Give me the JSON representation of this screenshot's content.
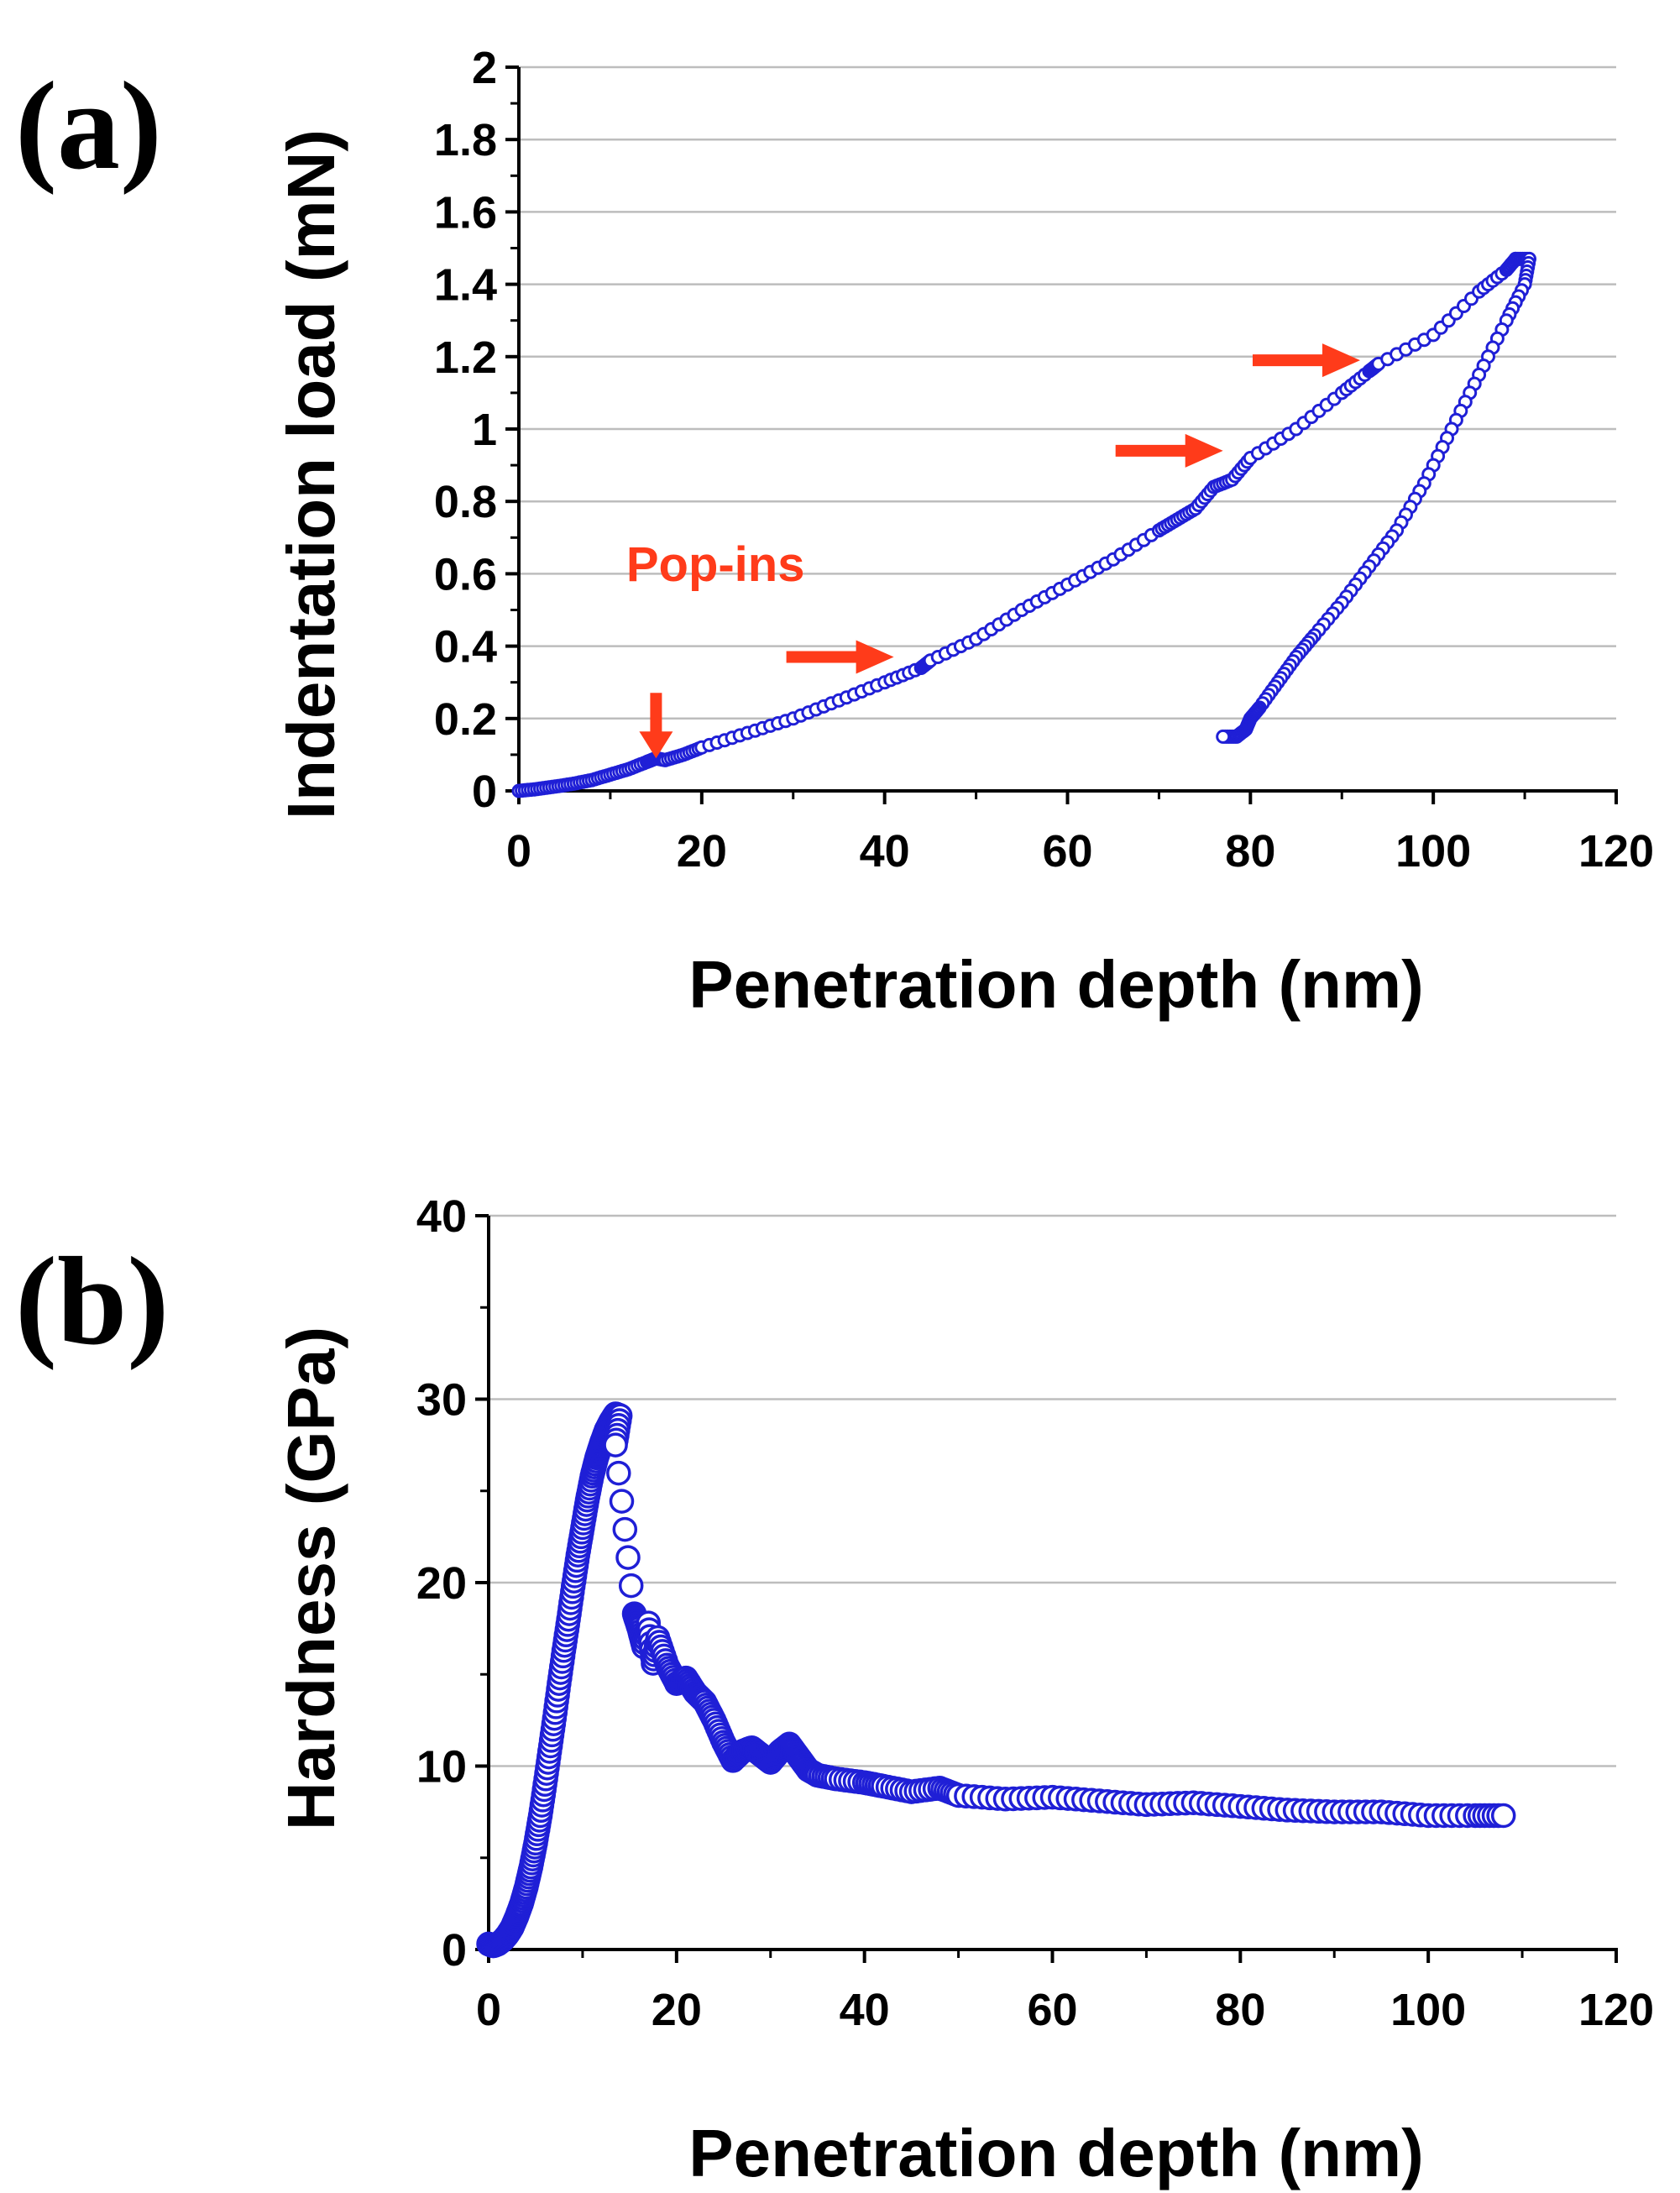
{
  "colors": {
    "series": "#1f1fd6",
    "annotation": "#ff3b1a",
    "grid": "#bdbdbd",
    "axis": "#000000"
  },
  "chart_data": [
    {
      "type": "scatter",
      "panel_label": "(a)",
      "xlabel": "Penetration depth (nm)",
      "ylabel": "Indentation load (mN)",
      "xlim": [
        0,
        120
      ],
      "ylim": [
        0,
        2
      ],
      "xticks": [
        0,
        20,
        40,
        60,
        80,
        100,
        120
      ],
      "yticks": [
        0,
        0.2,
        0.4,
        0.6,
        0.8,
        1,
        1.2,
        1.4,
        1.6,
        1.8,
        2
      ],
      "ytick_labels": [
        "0",
        "0.2",
        "0.4",
        "0.6",
        "0.8",
        "1",
        "1.2",
        "1.4",
        "1.6",
        "1.8",
        "2"
      ],
      "grid": "horizontal",
      "series": [
        {
          "name": "loading",
          "x": [
            0,
            2,
            4,
            6,
            8,
            10,
            12,
            14,
            15,
            16,
            18,
            20,
            25,
            30,
            35,
            40,
            44,
            45,
            50,
            55,
            60,
            65,
            70,
            72,
            74,
            76,
            78,
            80,
            85,
            90,
            93,
            94,
            100,
            105,
            108,
            109
          ],
          "y": [
            0,
            0.005,
            0.012,
            0.02,
            0.03,
            0.045,
            0.06,
            0.08,
            0.09,
            0.085,
            0.1,
            0.12,
            0.16,
            0.2,
            0.25,
            0.3,
            0.34,
            0.36,
            0.42,
            0.5,
            0.57,
            0.64,
            0.72,
            0.75,
            0.78,
            0.84,
            0.86,
            0.92,
            1.0,
            1.1,
            1.16,
            1.18,
            1.26,
            1.38,
            1.44,
            1.47
          ]
        },
        {
          "name": "unloading",
          "x": [
            109,
            110.5,
            110,
            108,
            105,
            102,
            99,
            96,
            93,
            90,
            87,
            85,
            83,
            81,
            80,
            79.5,
            78.5,
            77
          ],
          "y": [
            1.47,
            1.47,
            1.4,
            1.3,
            1.15,
            1.0,
            0.85,
            0.72,
            0.62,
            0.52,
            0.43,
            0.37,
            0.3,
            0.23,
            0.2,
            0.17,
            0.15,
            0.15
          ]
        }
      ],
      "annotations": {
        "text": "Pop-ins",
        "arrows": [
          {
            "dir": "down",
            "x": 15,
            "y": 0.09
          },
          {
            "dir": "right",
            "x": 41,
            "y": 0.37
          },
          {
            "dir": "right",
            "x": 77,
            "y": 0.94
          },
          {
            "dir": "right",
            "x": 92,
            "y": 1.19
          }
        ]
      }
    },
    {
      "type": "scatter",
      "panel_label": "(b)",
      "xlabel": "Penetration depth (nm)",
      "ylabel": "Hardness (GPa)",
      "xlim": [
        0,
        120
      ],
      "ylim": [
        0,
        40
      ],
      "xticks": [
        0,
        20,
        40,
        60,
        80,
        100,
        120
      ],
      "yticks": [
        0,
        10,
        20,
        30,
        40
      ],
      "ytick_labels": [
        "0",
        "10",
        "20",
        "30",
        "40"
      ],
      "grid": "horizontal",
      "series": [
        {
          "name": "hardness",
          "x": [
            0,
            0.5,
            1,
            1.5,
            2,
            2.5,
            3,
            3.5,
            4,
            4.5,
            5,
            5.5,
            6,
            6.5,
            7,
            7.5,
            8,
            8.5,
            9,
            9.5,
            10,
            10.5,
            11,
            11.5,
            12,
            12.5,
            13,
            13.5,
            14,
            13.5,
            15.5,
            16,
            16.5,
            17,
            17.5,
            18,
            19,
            20,
            21,
            22,
            23,
            24,
            25,
            26,
            27,
            28,
            29,
            30,
            31,
            32,
            33,
            34,
            35,
            37,
            40,
            42,
            45,
            48,
            50,
            55,
            60,
            65,
            70,
            75,
            80,
            85,
            90,
            95,
            100,
            105,
            108
          ],
          "y": [
            0.3,
            0.2,
            0.3,
            0.5,
            0.8,
            1.2,
            1.8,
            2.5,
            3.4,
            4.5,
            5.8,
            7.3,
            9,
            10.8,
            12.6,
            14.5,
            16.3,
            18,
            19.8,
            21.5,
            23,
            24.5,
            25.8,
            26.8,
            27.6,
            28.3,
            28.8,
            29.2,
            29.1,
            27.5,
            18.3,
            17.5,
            16.5,
            17.8,
            15.6,
            17,
            15.5,
            14.5,
            14.8,
            14,
            13.5,
            12.5,
            11.3,
            10.3,
            10.8,
            11,
            10.6,
            10.2,
            10.8,
            11.2,
            10.5,
            9.8,
            9.5,
            9.3,
            9.1,
            8.9,
            8.6,
            8.8,
            8.4,
            8.2,
            8.3,
            8.1,
            7.9,
            8,
            7.8,
            7.6,
            7.5,
            7.5,
            7.3,
            7.3,
            7.3
          ]
        }
      ]
    }
  ]
}
